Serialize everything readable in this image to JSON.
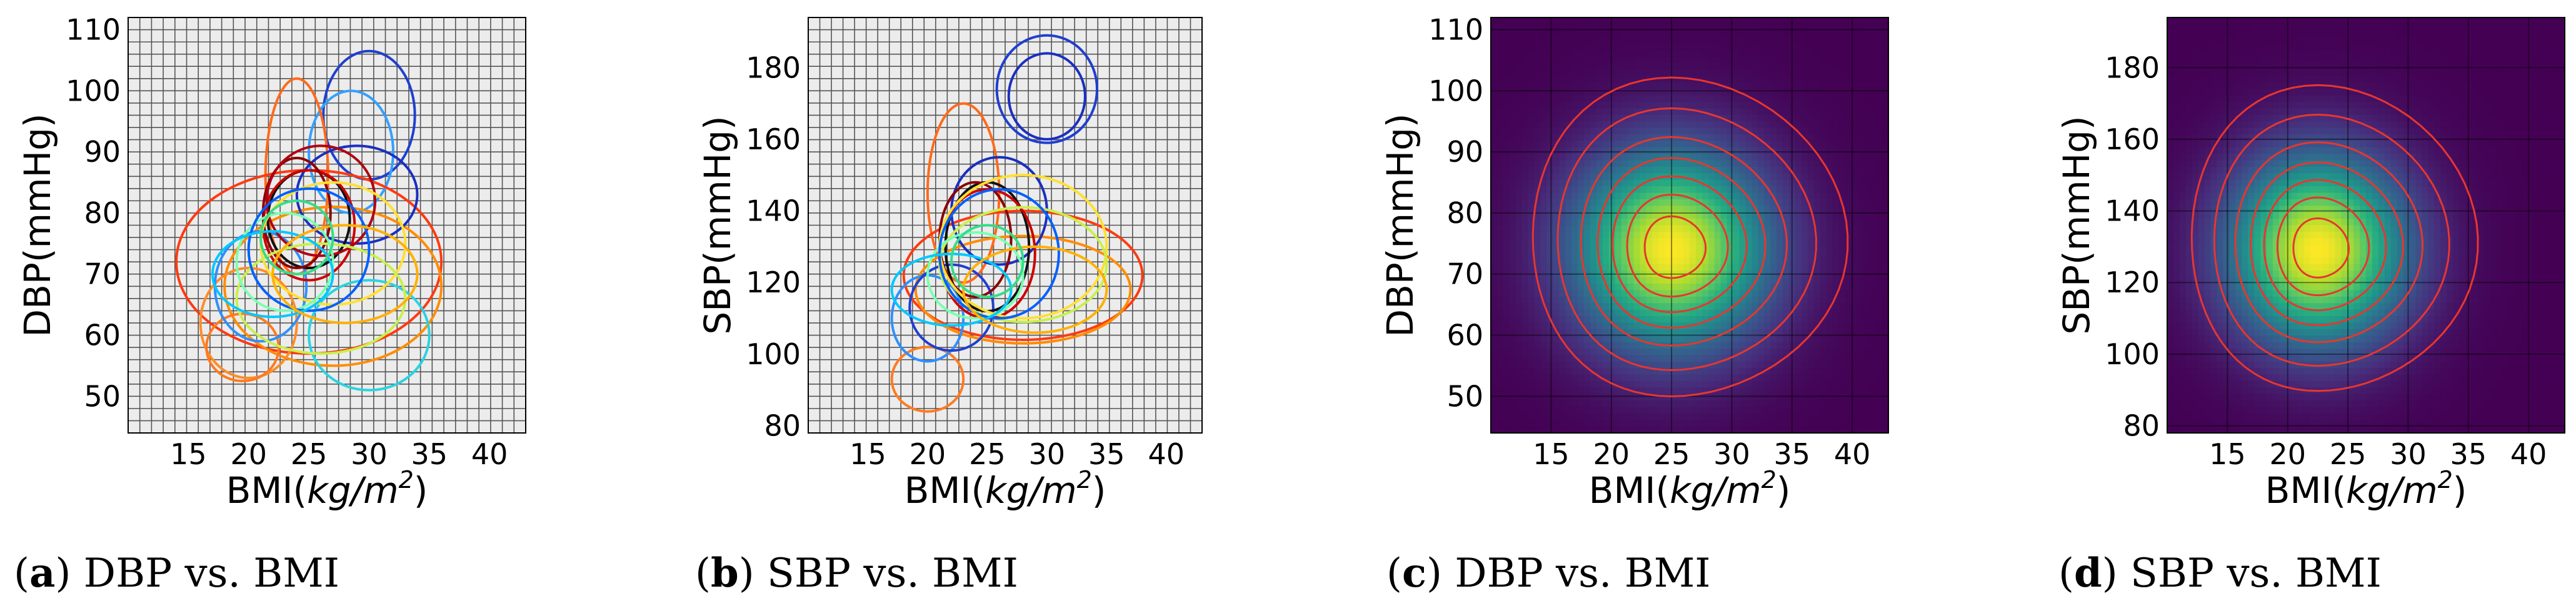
{
  "panels": [
    {
      "id": "a",
      "caption_letter": "a",
      "caption_text": ") DBP vs. BMI"
    },
    {
      "id": "b",
      "caption_letter": "b",
      "caption_text": ") SBP vs. BMI"
    },
    {
      "id": "c",
      "caption_letter": "c",
      "caption_text": ") DBP vs. BMI"
    },
    {
      "id": "d",
      "caption_letter": "d",
      "caption_text": ") SBP vs. BMI"
    }
  ],
  "colors": {
    "grid_bg": "#ececec",
    "grid_line": "#555555",
    "density_low": "#440154",
    "density_high": "#fde725",
    "contour": "#e8362e"
  },
  "chart_data": [
    {
      "type": "scatter",
      "subtype": "gaussian-ellipses",
      "title": "DBP vs. BMI",
      "xlabel_prefix": "BMI(",
      "xlabel_unit": "kg/m",
      "xlabel_sup": "2",
      "xlabel_suffix": ")",
      "ylabel": "DBP(mmHg)",
      "xlim": [
        10,
        43
      ],
      "ylim": [
        44,
        112
      ],
      "xticks": [
        15,
        20,
        25,
        30,
        35,
        40
      ],
      "yticks": [
        50,
        60,
        70,
        80,
        90,
        100,
        110
      ],
      "grid": true,
      "ellipses": [
        {
          "cx": 30,
          "cy": 96,
          "rx": 3.8,
          "ry": 10.5,
          "color": "#1f3fd0"
        },
        {
          "cx": 28.5,
          "cy": 90,
          "rx": 3.5,
          "ry": 10,
          "color": "#33a0ff"
        },
        {
          "cx": 24,
          "cy": 86,
          "rx": 2.6,
          "ry": 16,
          "color": "#ff6a1a"
        },
        {
          "cx": 25,
          "cy": 72,
          "rx": 11,
          "ry": 15,
          "color": "#ff3a10"
        },
        {
          "cx": 27,
          "cy": 68,
          "rx": 9,
          "ry": 13,
          "color": "#ff8c00"
        },
        {
          "cx": 20,
          "cy": 62,
          "rx": 4,
          "ry": 9,
          "color": "#ff8c28"
        },
        {
          "cx": 19.5,
          "cy": 58,
          "rx": 3,
          "ry": 5.5,
          "color": "#ff7a20"
        },
        {
          "cx": 30,
          "cy": 60,
          "rx": 5,
          "ry": 9,
          "color": "#29d3e0"
        },
        {
          "cx": 21,
          "cy": 68,
          "rx": 3.8,
          "ry": 9,
          "color": "#2f8fff"
        },
        {
          "cx": 29,
          "cy": 83,
          "rx": 5,
          "ry": 8,
          "color": "#1a2fc0"
        },
        {
          "cx": 25,
          "cy": 79,
          "rx": 3.4,
          "ry": 8,
          "color": "#111111"
        },
        {
          "cx": 25,
          "cy": 78,
          "rx": 3.8,
          "ry": 9,
          "color": "#cc0000"
        },
        {
          "cx": 24,
          "cy": 80,
          "rx": 2.8,
          "ry": 9,
          "color": "#8a0000"
        },
        {
          "cx": 26,
          "cy": 82,
          "rx": 4.5,
          "ry": 9,
          "color": "#b00010"
        },
        {
          "cx": 27,
          "cy": 75,
          "rx": 6,
          "ry": 10,
          "color": "#ffe030"
        },
        {
          "cx": 26,
          "cy": 66,
          "rx": 7,
          "ry": 9,
          "color": "#c8f04a"
        },
        {
          "cx": 23,
          "cy": 72,
          "rx": 4,
          "ry": 8,
          "color": "#7affb0"
        },
        {
          "cx": 25,
          "cy": 74,
          "rx": 5,
          "ry": 10,
          "color": "#0060ff"
        },
        {
          "cx": 22,
          "cy": 70,
          "rx": 5,
          "ry": 7,
          "color": "#00c8ff"
        },
        {
          "cx": 28,
          "cy": 70,
          "rx": 6,
          "ry": 8,
          "color": "#ffb000"
        },
        {
          "cx": 24,
          "cy": 76,
          "rx": 3,
          "ry": 6,
          "color": "#33dd88"
        }
      ]
    },
    {
      "type": "scatter",
      "subtype": "gaussian-ellipses",
      "title": "SBP vs. BMI",
      "xlabel_prefix": "BMI(",
      "xlabel_unit": "kg/m",
      "xlabel_sup": "2",
      "xlabel_suffix": ")",
      "ylabel": "SBP(mmHg)",
      "xlim": [
        10,
        43
      ],
      "ylim": [
        78,
        194
      ],
      "xticks": [
        15,
        20,
        25,
        30,
        35,
        40
      ],
      "yticks": [
        80,
        100,
        120,
        140,
        160,
        180
      ],
      "grid": true,
      "ellipses": [
        {
          "cx": 30,
          "cy": 174,
          "rx": 4.2,
          "ry": 15,
          "color": "#1f3fd0"
        },
        {
          "cx": 30,
          "cy": 172,
          "rx": 3.2,
          "ry": 12,
          "color": "#1a2fc0"
        },
        {
          "cx": 23,
          "cy": 145,
          "rx": 3,
          "ry": 25,
          "color": "#ff6a1a"
        },
        {
          "cx": 28,
          "cy": 122,
          "rx": 10,
          "ry": 18,
          "color": "#ff3a10"
        },
        {
          "cx": 28,
          "cy": 118,
          "rx": 9,
          "ry": 15,
          "color": "#ff8c00"
        },
        {
          "cx": 20,
          "cy": 93,
          "rx": 3,
          "ry": 9,
          "color": "#ff7a20"
        },
        {
          "cx": 20,
          "cy": 110,
          "rx": 3,
          "ry": 12,
          "color": "#2f8fff"
        },
        {
          "cx": 22,
          "cy": 113,
          "rx": 3.5,
          "ry": 12,
          "color": "#1f3fd0"
        },
        {
          "cx": 26,
          "cy": 140,
          "rx": 4,
          "ry": 15,
          "color": "#1a2fc0"
        },
        {
          "cx": 25,
          "cy": 130,
          "rx": 3.5,
          "ry": 18,
          "color": "#111111"
        },
        {
          "cx": 25,
          "cy": 128,
          "rx": 4,
          "ry": 18,
          "color": "#cc0000"
        },
        {
          "cx": 24,
          "cy": 132,
          "rx": 3,
          "ry": 16,
          "color": "#8a0000"
        },
        {
          "cx": 28,
          "cy": 130,
          "rx": 7,
          "ry": 20,
          "color": "#ffe030"
        },
        {
          "cx": 28,
          "cy": 125,
          "rx": 7,
          "ry": 16,
          "color": "#c8f04a"
        },
        {
          "cx": 24,
          "cy": 122,
          "rx": 4,
          "ry": 12,
          "color": "#7affb0"
        },
        {
          "cx": 26,
          "cy": 128,
          "rx": 5,
          "ry": 18,
          "color": "#0060ff"
        },
        {
          "cx": 22,
          "cy": 118,
          "rx": 5,
          "ry": 10,
          "color": "#00c8ff"
        },
        {
          "cx": 29,
          "cy": 118,
          "rx": 6,
          "ry": 12,
          "color": "#ffb000"
        },
        {
          "cx": 25,
          "cy": 126,
          "rx": 3,
          "ry": 10,
          "color": "#33dd88"
        }
      ]
    },
    {
      "type": "heatmap",
      "subtype": "kde-contour",
      "title": "DBP vs. BMI",
      "xlabel_prefix": "BMI(",
      "xlabel_unit": "kg/m",
      "xlabel_sup": "2",
      "xlabel_suffix": ")",
      "ylabel": "DBP(mmHg)",
      "xlim": [
        10,
        43
      ],
      "ylim": [
        44,
        112
      ],
      "xticks": [
        15,
        20,
        25,
        30,
        35,
        40
      ],
      "yticks": [
        50,
        60,
        70,
        80,
        90,
        100,
        110
      ],
      "grid": true,
      "peak": [
        25,
        74
      ],
      "spread": [
        5.5,
        11
      ],
      "contour_levels": [
        0.06,
        0.15,
        0.3,
        0.45,
        0.6,
        0.75,
        0.9
      ]
    },
    {
      "type": "heatmap",
      "subtype": "kde-contour",
      "title": "SBP vs. BMI",
      "xlabel_prefix": "BMI(",
      "xlabel_unit": "kg/m",
      "xlabel_sup": "2",
      "xlabel_suffix": ")",
      "ylabel": "SBP(mmHg)",
      "xlim": [
        10,
        43
      ],
      "ylim": [
        78,
        194
      ],
      "xticks": [
        15,
        20,
        25,
        30,
        35,
        40
      ],
      "yticks": [
        80,
        100,
        120,
        140,
        160,
        180
      ],
      "grid": true,
      "peak": [
        22.5,
        129
      ],
      "spread": [
        5,
        18
      ],
      "contour_levels": [
        0.06,
        0.15,
        0.3,
        0.45,
        0.6,
        0.75,
        0.9
      ]
    }
  ]
}
